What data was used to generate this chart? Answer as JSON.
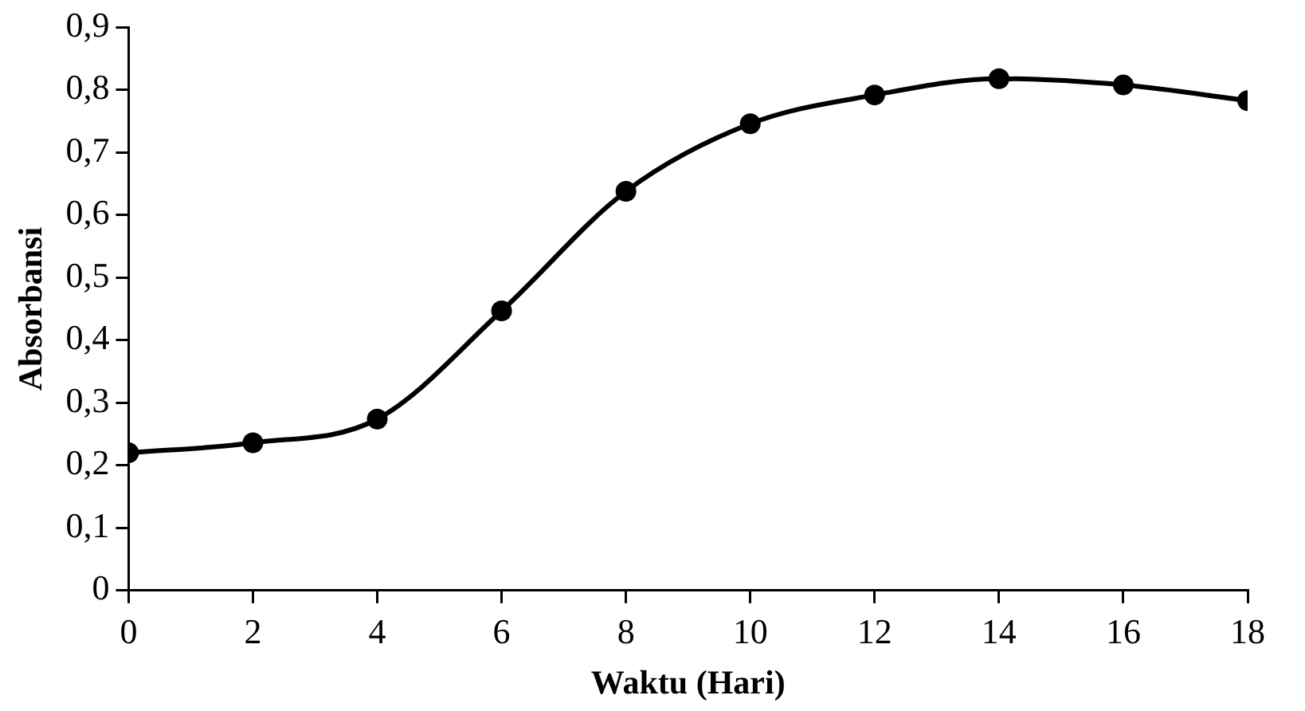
{
  "chart_data": {
    "type": "line",
    "xlabel": "Waktu (Hari)",
    "ylabel": "Absorbansi",
    "x": [
      0,
      2,
      4,
      6,
      8,
      10,
      12,
      14,
      16,
      18
    ],
    "series": [
      {
        "color": "#000000",
        "values": [
          0.22,
          0.236,
          0.274,
          0.447,
          0.638,
          0.746,
          0.792,
          0.818,
          0.808,
          0.783
        ]
      }
    ],
    "xlim": [
      0,
      18
    ],
    "xticks": [
      0,
      2,
      4,
      6,
      8,
      10,
      12,
      14,
      16,
      18
    ],
    "ylim": [
      0,
      0.9
    ],
    "yticks": [
      0,
      {
        "value": 0.1,
        "label": "0,1"
      },
      {
        "value": 0.2,
        "label": "0,2"
      },
      {
        "value": 0.3,
        "label": "0,3"
      },
      {
        "value": 0.4,
        "label": "0,4"
      },
      {
        "value": 0.5,
        "label": "0,5"
      },
      {
        "value": 0.6,
        "label": "0,6"
      },
      {
        "value": 0.7,
        "label": "0,7"
      },
      {
        "value": 0.8,
        "label": "0,8"
      },
      {
        "value": 0.9,
        "label": "0,9"
      }
    ],
    "grid": false,
    "legend": false,
    "marker": "circle",
    "line_style": "solid"
  }
}
